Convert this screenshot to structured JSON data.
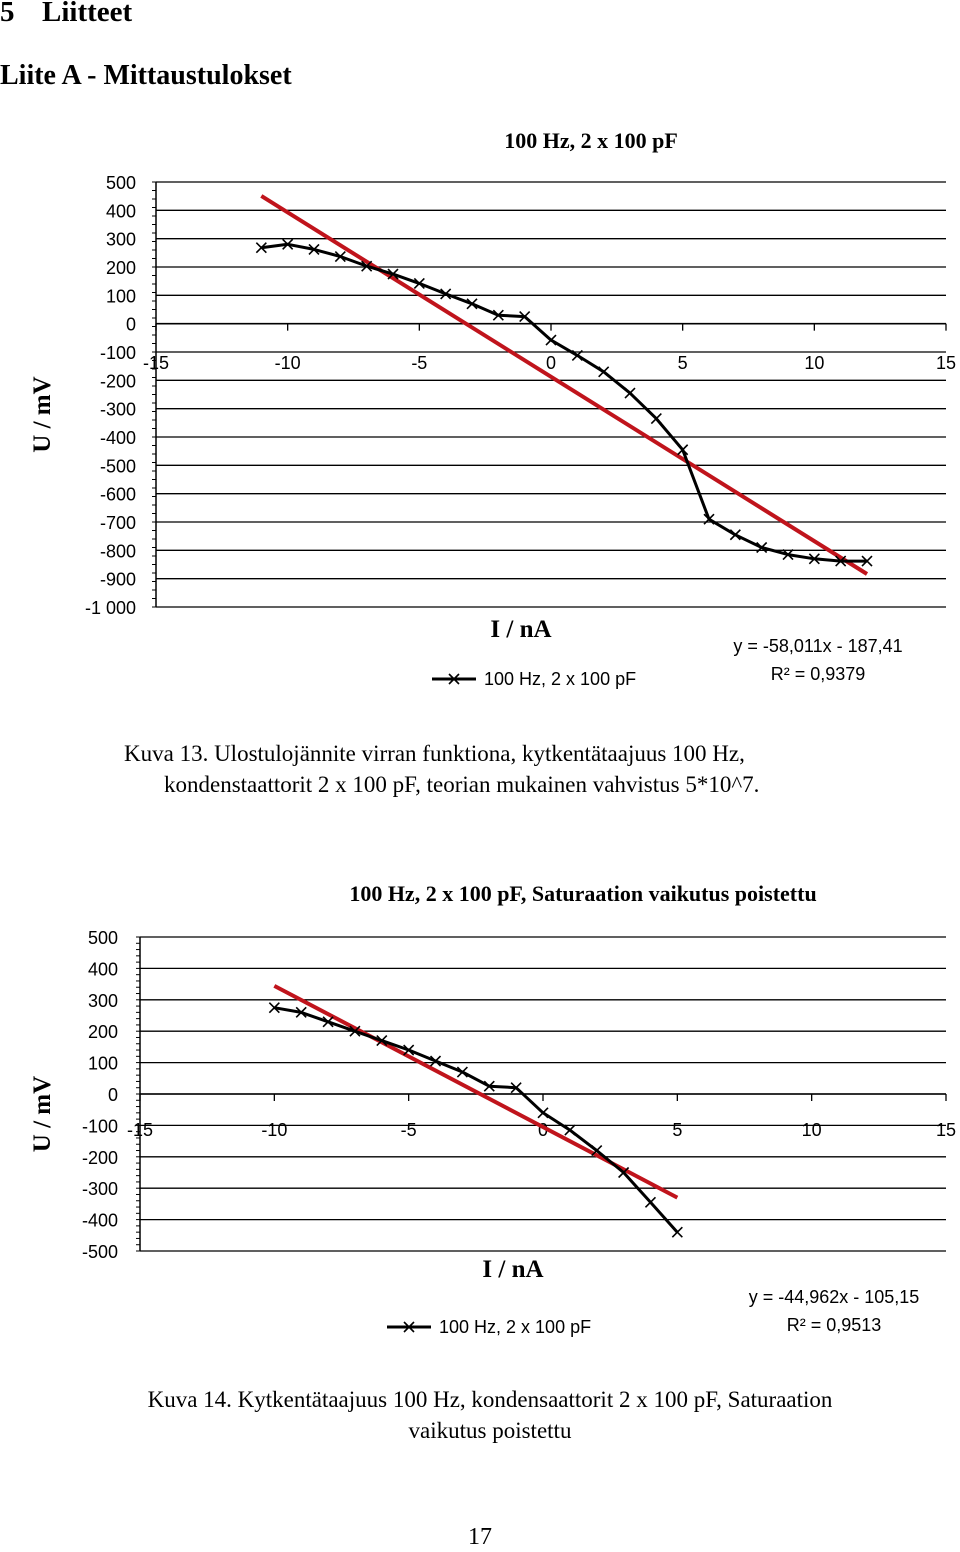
{
  "page": {
    "section_number": "5",
    "section_title": "Liitteet",
    "appendix_title": "Liite A  -  Mittaustulokset",
    "page_number": "17",
    "caption_1_line1": "Kuva 13. Ulostulojännite virran funktiona, kytkentätaajuus 100 Hz,",
    "caption_1_line2": "kondenstaattorit 2 x 100 pF, teorian mukainen vahvistus 5*10^7.",
    "caption_2_line1": "Kuva 14. Kytkentätaajuus 100 Hz, kondensaattorit 2 x 100 pF, Saturaation",
    "caption_2_line2": "vaikutus poistettu"
  },
  "chart_data": [
    {
      "type": "line",
      "title": "100 Hz, 2 x 100 pF",
      "xlabel": "I / nA",
      "ylabel": "U / mV",
      "xlim": [
        -15,
        15
      ],
      "ylim": [
        -1000,
        500
      ],
      "x_ticks": [
        -15,
        -10,
        -5,
        0,
        5,
        10,
        15
      ],
      "x_tick_labels": [
        "-15",
        "-10",
        "-5",
        "0",
        "5",
        "10",
        "15"
      ],
      "y_ticks": [
        500,
        400,
        300,
        200,
        100,
        0,
        -100,
        -200,
        -300,
        -400,
        -500,
        -600,
        -700,
        -800,
        -900,
        -1000
      ],
      "y_tick_labels": [
        "500",
        "400",
        "300",
        "200",
        "100",
        "0",
        "-100",
        "-200",
        "-300",
        "-400",
        "-500",
        "-600",
        "-700",
        "-800",
        "-900",
        "-1 000"
      ],
      "grid": "horizontal",
      "legend_position": "bottom",
      "series": [
        {
          "name": "100 Hz, 2 x 100 pF",
          "color": "#000000",
          "marker": "x",
          "x": [
            -11,
            -10,
            -9,
            -8,
            -7,
            -6,
            -5,
            -4,
            -3,
            -2,
            -1,
            0,
            1,
            2,
            3,
            4,
            5,
            6,
            7,
            8,
            9,
            10,
            11,
            12
          ],
          "y": [
            268,
            280,
            262,
            237,
            203,
            175,
            142,
            105,
            70,
            30,
            25,
            -58,
            -112,
            -170,
            -245,
            -335,
            -445,
            -690,
            -745,
            -790,
            -815,
            -830,
            -838,
            -838
          ]
        }
      ],
      "trendline": {
        "color": "#c0141c",
        "x_range": [
          -11,
          12
        ],
        "slope": -58.011,
        "intercept": -187.41,
        "equation": "y = -58,011x - 187,41",
        "r2": "R² = 0,9379"
      }
    },
    {
      "type": "line",
      "title": "100 Hz, 2 x 100 pF, Saturaation vaikutus poistettu",
      "xlabel": "I / nA",
      "ylabel": "U / mV",
      "xlim": [
        -15,
        15
      ],
      "ylim": [
        -500,
        500
      ],
      "x_ticks": [
        -15,
        -10,
        -5,
        0,
        5,
        10,
        15
      ],
      "x_tick_labels": [
        "-15",
        "-10",
        "-5",
        "0",
        "5",
        "10",
        "15"
      ],
      "y_ticks": [
        500,
        400,
        300,
        200,
        100,
        0,
        -100,
        -200,
        -300,
        -400,
        -500
      ],
      "y_tick_labels": [
        "500",
        "400",
        "300",
        "200",
        "100",
        "0",
        "-100",
        "-200",
        "-300",
        "-400",
        "-500"
      ],
      "grid": "horizontal",
      "legend_position": "bottom",
      "series": [
        {
          "name": "100 Hz, 2 x 100 pF",
          "color": "#000000",
          "marker": "x",
          "x": [
            -10,
            -9,
            -8,
            -7,
            -6,
            -5,
            -4,
            -3,
            -2,
            -1,
            0,
            1,
            2,
            3,
            4,
            5
          ],
          "y": [
            275,
            260,
            230,
            200,
            170,
            140,
            105,
            70,
            25,
            20,
            -60,
            -115,
            -180,
            -250,
            -345,
            -440
          ]
        }
      ],
      "trendline": {
        "color": "#c0141c",
        "x_range": [
          -10,
          5
        ],
        "slope": -44.962,
        "intercept": -105.15,
        "equation": "y = -44,962x - 105,15",
        "r2": "R² = 0,9513"
      }
    }
  ]
}
